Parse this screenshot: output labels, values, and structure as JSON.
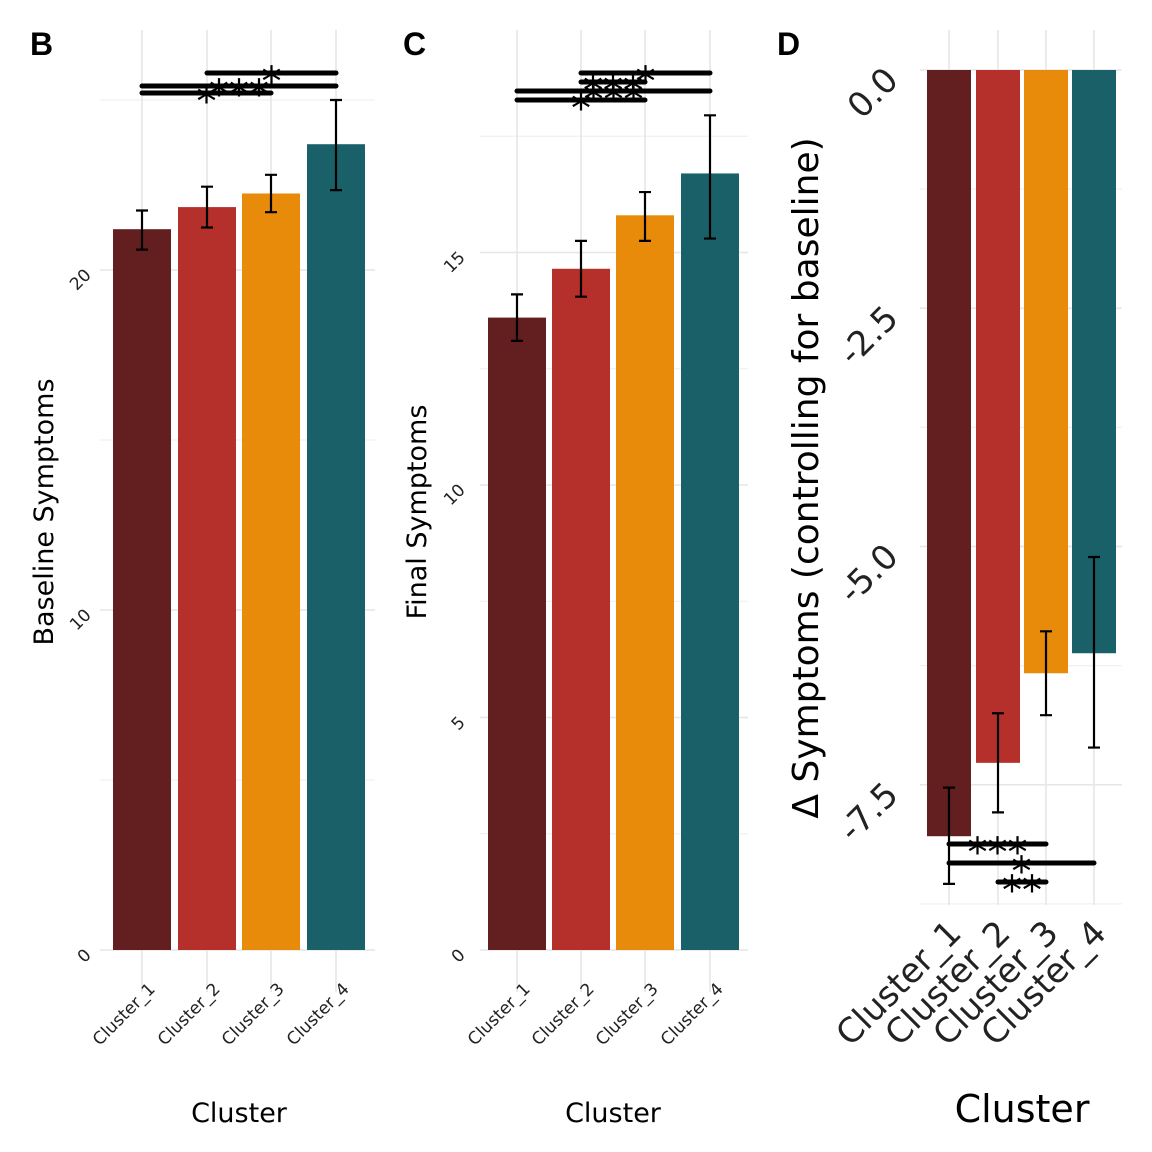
{
  "chart_data": [
    {
      "type": "bar",
      "panel": "B",
      "categories": [
        "Cluster_1",
        "Cluster_2",
        "Cluster_3",
        "Cluster_4"
      ],
      "values": [
        21.2,
        21.85,
        22.25,
        23.7
      ],
      "error_low": [
        20.6,
        21.25,
        21.7,
        22.35
      ],
      "error_high": [
        21.75,
        22.45,
        22.8,
        25.0
      ],
      "colors": [
        "#631f1f",
        "#b5302b",
        "#e88a0a",
        "#1a6068"
      ],
      "xlabel": "Cluster",
      "ylabel": "Baseline Symptoms",
      "ylim": [
        0,
        26.2
      ],
      "yticks": [
        0,
        10,
        20
      ],
      "yticklabels": [
        "0",
        "10",
        "20"
      ],
      "significance": [
        {
          "from": "Cluster_2",
          "to": "Cluster_4",
          "label": "*"
        },
        {
          "from": "Cluster_1",
          "to": "Cluster_4",
          "label": "***"
        },
        {
          "from": "Cluster_1",
          "to": "Cluster_3",
          "label": "*"
        }
      ],
      "grid": true
    },
    {
      "type": "bar",
      "panel": "C",
      "categories": [
        "Cluster_1",
        "Cluster_2",
        "Cluster_3",
        "Cluster_4"
      ],
      "values": [
        13.6,
        14.65,
        15.8,
        16.7
      ],
      "error_low": [
        13.1,
        14.05,
        15.25,
        15.3
      ],
      "error_high": [
        14.1,
        15.25,
        16.3,
        17.95
      ],
      "colors": [
        "#631f1f",
        "#b5302b",
        "#e88a0a",
        "#1a6068"
      ],
      "xlabel": "Cluster",
      "ylabel": "Final Symptoms",
      "ylim": [
        0,
        19.1
      ],
      "yticks": [
        0,
        5,
        10,
        15
      ],
      "yticklabels": [
        "0",
        "5",
        "10",
        "15"
      ],
      "significance": [
        {
          "from": "Cluster_2",
          "to": "Cluster_4",
          "label": "*"
        },
        {
          "from": "Cluster_2",
          "to": "Cluster_3",
          "label": "***"
        },
        {
          "from": "Cluster_1",
          "to": "Cluster_4",
          "label": "***"
        },
        {
          "from": "Cluster_1",
          "to": "Cluster_3",
          "label": "*"
        }
      ],
      "grid": true
    },
    {
      "type": "bar",
      "panel": "D",
      "categories": [
        "Cluster_1",
        "Cluster_2",
        "Cluster_3",
        "Cluster_4"
      ],
      "values": [
        -8.04,
        -7.27,
        -6.33,
        -6.12
      ],
      "error_low": [
        -8.54,
        -7.79,
        -6.77,
        -7.11
      ],
      "error_high": [
        -7.53,
        -6.75,
        -5.89,
        -5.11
      ],
      "colors": [
        "#631f1f",
        "#b5302b",
        "#e88a0a",
        "#1a6068"
      ],
      "xlabel": "Cluster",
      "ylabel": "Δ Symptoms (controlling for baseline)",
      "ylim": [
        -8.75,
        0
      ],
      "yticks": [
        0,
        -2.5,
        -5,
        -7.5
      ],
      "yticklabels": [
        "0.0",
        "-2.5",
        "-5.0",
        "-7.5"
      ],
      "significance": [
        {
          "from": "Cluster_1",
          "to": "Cluster_3",
          "label": "***"
        },
        {
          "from": "Cluster_1",
          "to": "Cluster_4",
          "label": "*"
        },
        {
          "from": "Cluster_2",
          "to": "Cluster_3",
          "label": "**"
        }
      ],
      "grid": true
    }
  ]
}
